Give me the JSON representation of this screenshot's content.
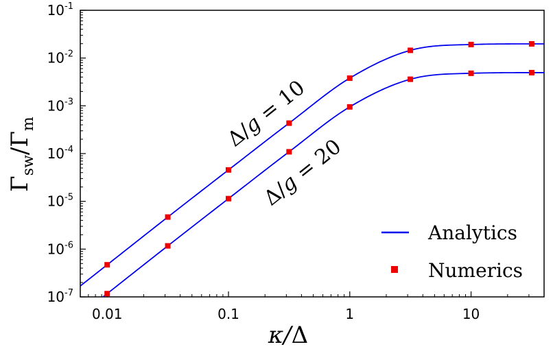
{
  "chart_data": {
    "type": "line",
    "xscale": "log",
    "yscale": "log",
    "xlim": [
      0.006,
      40
    ],
    "ylim": [
      1e-07,
      0.1
    ],
    "xlabel": "κ/Δ",
    "ylabel": "Γsw/Γm",
    "x_ticks": [
      {
        "value": 0.01,
        "label": "0.01"
      },
      {
        "value": 0.1,
        "label": "0.1"
      },
      {
        "value": 1,
        "label": "1"
      },
      {
        "value": 10,
        "label": "10"
      }
    ],
    "y_ticks": [
      {
        "value": 1e-07,
        "mant": "10",
        "exp": "-7"
      },
      {
        "value": 1e-06,
        "mant": "10",
        "exp": "-6"
      },
      {
        "value": 1e-05,
        "mant": "10",
        "exp": "-5"
      },
      {
        "value": 0.0001,
        "mant": "10",
        "exp": "-4"
      },
      {
        "value": 0.001,
        "mant": "10",
        "exp": "-3"
      },
      {
        "value": 0.01,
        "mant": "10",
        "exp": "-2"
      },
      {
        "value": 0.1,
        "mant": "10",
        "exp": "-1"
      }
    ],
    "grid": false,
    "legend_position": "bottom-right",
    "series": [
      {
        "kind": "line",
        "color": "#0000ee",
        "annotation": {
          "prefix": "Δ/",
          "var": "g",
          "suffix": " = 10"
        },
        "x": [
          0.006,
          0.01,
          0.0316,
          0.1,
          0.316,
          1,
          3.16,
          10,
          31.6,
          40
        ],
        "y": [
          1.69e-07,
          4.7e-07,
          4.69e-06,
          4.55e-05,
          0.000434,
          0.0038,
          0.0145,
          0.0192,
          0.0198,
          0.0198
        ]
      },
      {
        "kind": "line",
        "color": "#0000ee",
        "annotation": {
          "prefix": "Δ/",
          "var": "g",
          "suffix": " = 20"
        },
        "x": [
          0.006,
          0.01,
          0.0316,
          0.1,
          0.316,
          1,
          3.16,
          10,
          31.6,
          40
        ],
        "y": [
          4.2e-08,
          1.17e-07,
          1.17e-06,
          1.14e-05,
          0.000109,
          0.00095,
          0.0036,
          0.0048,
          0.00495,
          0.00495
        ]
      },
      {
        "kind": "markers",
        "color": "#ee0000",
        "x": [
          0.01,
          0.0316,
          0.1,
          0.316,
          1,
          3.16,
          10,
          31.6
        ],
        "y": [
          4.7e-07,
          4.69e-06,
          4.55e-05,
          0.000434,
          0.0038,
          0.0145,
          0.0192,
          0.0198
        ]
      },
      {
        "kind": "markers",
        "color": "#ee0000",
        "x": [
          0.01,
          0.0316,
          0.1,
          0.316,
          1,
          3.16,
          10,
          31.6
        ],
        "y": [
          1.17e-07,
          1.17e-06,
          1.14e-05,
          0.000109,
          0.00095,
          0.0036,
          0.0048,
          0.00495
        ]
      }
    ],
    "legend": [
      {
        "label": "Analytics",
        "kind": "line",
        "color": "#0000ee"
      },
      {
        "label": "Numerics",
        "kind": "marker",
        "color": "#ee0000"
      }
    ]
  }
}
